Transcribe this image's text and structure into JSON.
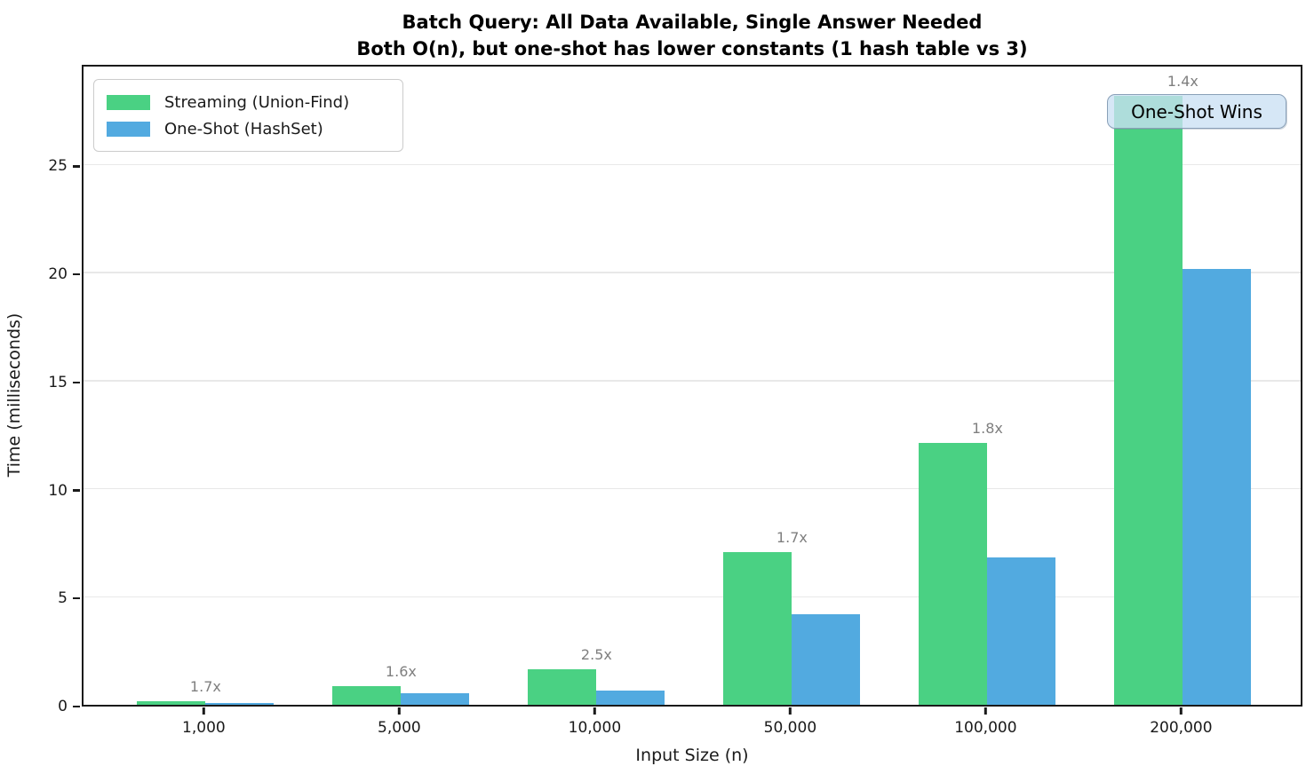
{
  "title": {
    "line1": "Batch Query: All Data Available, Single Answer Needed",
    "line2": "Both O(n), but one-shot has lower constants (1 hash table vs 3)"
  },
  "annotation": {
    "text": "One-Shot Wins"
  },
  "colors": {
    "streaming_green": "#4AD183",
    "oneshot_blue": "#52AAE0",
    "ratio_label_gray": "#7f7f7f",
    "annotation_fill": "#cbe0f3",
    "annotation_border": "#8aa0b8",
    "grid": "#e8e8e8",
    "spine": "#1a1a1a"
  },
  "chart_data": {
    "type": "bar",
    "title": "Batch Query: All Data Available, Single Answer Needed",
    "subtitle": "Both O(n), but one-shot has lower constants (1 hash table vs 3)",
    "xlabel": "Input Size (n)",
    "ylabel": "Time (milliseconds)",
    "categories": [
      "1,000",
      "5,000",
      "10,000",
      "50,000",
      "100,000",
      "200,000"
    ],
    "series": [
      {
        "name": "Streaming (Union-Find)",
        "color": "#4AD183",
        "values": [
          0.15,
          0.85,
          1.65,
          7.05,
          12.1,
          28.2
        ]
      },
      {
        "name": "One-Shot (HashSet)",
        "color": "#52AAE0",
        "values": [
          0.09,
          0.53,
          0.66,
          4.2,
          6.8,
          20.15
        ]
      }
    ],
    "ratio_labels": [
      "1.7x",
      "1.6x",
      "2.5x",
      "1.7x",
      "1.8x",
      "1.4x"
    ],
    "y_ticks": [
      0,
      5,
      10,
      15,
      20,
      25
    ],
    "ylim": [
      0,
      29.7
    ],
    "grid": true,
    "legend_position": "upper left",
    "annotation": "One-Shot Wins"
  }
}
